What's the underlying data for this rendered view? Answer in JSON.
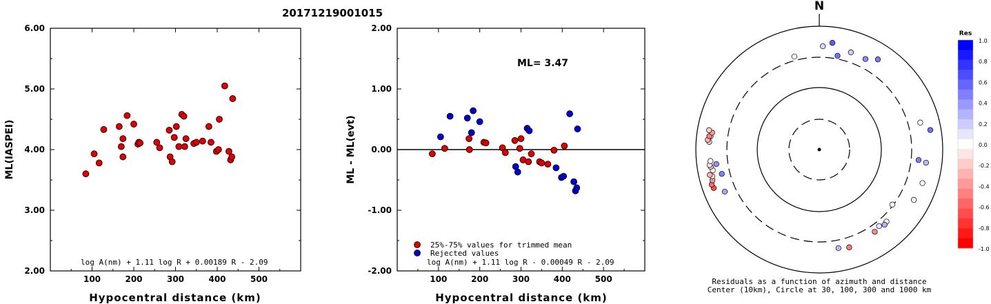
{
  "title": "20171219001015",
  "chart_data": [
    {
      "type": "scatter",
      "id": "ml-vs-distance",
      "ylabel": "ML(IASPEI)",
      "xlabel": "Hypocentral distance (km)",
      "xlim": [
        0,
        600
      ],
      "ylim": [
        2.0,
        6.0
      ],
      "xticks": [
        100,
        200,
        300,
        400,
        500
      ],
      "yticks": [
        "2.00",
        "3.00",
        "4.00",
        "5.00",
        "6.00"
      ],
      "formula": "log A(nm) + 1.11 log R + 0.00189 R - 2.09",
      "point_color": "#dd0000",
      "points": [
        [
          85,
          3.6
        ],
        [
          105,
          3.93
        ],
        [
          117,
          3.78
        ],
        [
          128,
          4.33
        ],
        [
          165,
          4.38
        ],
        [
          170,
          4.05
        ],
        [
          174,
          3.88
        ],
        [
          174,
          4.18
        ],
        [
          184,
          4.56
        ],
        [
          200,
          4.42
        ],
        [
          210,
          4.09
        ],
        [
          212,
          4.12
        ],
        [
          215,
          4.11
        ],
        [
          255,
          4.12
        ],
        [
          262,
          4.03
        ],
        [
          285,
          4.32
        ],
        [
          287,
          3.88
        ],
        [
          292,
          3.8
        ],
        [
          297,
          4.2
        ],
        [
          302,
          4.38
        ],
        [
          308,
          4.05
        ],
        [
          315,
          4.58
        ],
        [
          320,
          4.55
        ],
        [
          322,
          4.05
        ],
        [
          325,
          4.18
        ],
        [
          344,
          4.1
        ],
        [
          350,
          4.12
        ],
        [
          365,
          4.14
        ],
        [
          380,
          4.38
        ],
        [
          385,
          4.12
        ],
        [
          398,
          3.97
        ],
        [
          403,
          4.0
        ],
        [
          405,
          4.5
        ],
        [
          418,
          5.05
        ],
        [
          428,
          3.97
        ],
        [
          432,
          3.83
        ],
        [
          435,
          3.88
        ],
        [
          437,
          4.84
        ]
      ]
    },
    {
      "type": "scatter",
      "id": "residual-vs-distance",
      "ylabel": "ML - ML(evt)",
      "xlabel": "Hypocentral distance (km)",
      "xlim": [
        0,
        600
      ],
      "ylim": [
        -2.0,
        2.0
      ],
      "xticks": [
        100,
        200,
        300,
        400,
        500
      ],
      "yticks": [
        "-2.00",
        "-1.00",
        "0.00",
        "1.00",
        "2.00"
      ],
      "annotation": "ML= 3.47",
      "formula": "log A(nm) + 1.11 log R - 0.00049 R - 2.09",
      "legend": [
        {
          "label": "25%-75% values for trimmed mean",
          "color": "#dd0000"
        },
        {
          "label": "Rejected values",
          "color": "#0000cc"
        }
      ],
      "series": [
        {
          "name": "25%-75% values for trimmed mean",
          "color": "#dd0000",
          "points": [
            [
              85,
              -0.07
            ],
            [
              115,
              0.02
            ],
            [
              174,
              0.18
            ],
            [
              175,
              0.0
            ],
            [
              210,
              0.12
            ],
            [
              215,
              0.11
            ],
            [
              255,
              0.03
            ],
            [
              262,
              -0.05
            ],
            [
              285,
              0.15
            ],
            [
              297,
              0.02
            ],
            [
              300,
              0.18
            ],
            [
              305,
              -0.17
            ],
            [
              318,
              -0.2
            ],
            [
              325,
              -0.07
            ],
            [
              345,
              -0.2
            ],
            [
              350,
              -0.22
            ],
            [
              365,
              -0.24
            ],
            [
              380,
              -0.01
            ],
            [
              405,
              0.06
            ]
          ]
        },
        {
          "name": "Rejected values",
          "color": "#0000cc",
          "points": [
            [
              105,
              0.21
            ],
            [
              128,
              0.55
            ],
            [
              170,
              0.52
            ],
            [
              180,
              0.28
            ],
            [
              184,
              0.64
            ],
            [
              200,
              0.46
            ],
            [
              287,
              -0.28
            ],
            [
              292,
              -0.37
            ],
            [
              315,
              0.35
            ],
            [
              320,
              0.31
            ],
            [
              385,
              -0.3
            ],
            [
              398,
              -0.46
            ],
            [
              403,
              -0.44
            ],
            [
              418,
              0.59
            ],
            [
              428,
              -0.53
            ],
            [
              432,
              -0.68
            ],
            [
              435,
              -0.63
            ],
            [
              437,
              0.34
            ]
          ]
        }
      ]
    },
    {
      "type": "scatter",
      "id": "azimuth-residual-map",
      "north_label": "N",
      "caption_line1": "Residuals as a function of azimuth and distance",
      "caption_line2": "Center (10km), Circle at 30, 100, 300 and 1000 km",
      "colorbar_title": "Res",
      "colorbar_ticks": [
        "1.0",
        "0.8",
        "0.6",
        "0.4",
        "0.2",
        "0.0",
        "-0.2",
        "-0.4",
        "-0.6",
        "-0.8",
        "-1.0"
      ],
      "points": [
        {
          "az": 2,
          "dist": 460,
          "res": 0.15
        },
        {
          "az": 7,
          "dist": 540,
          "res": 0.64
        },
        {
          "az": 18,
          "dist": 440,
          "res": 0.2
        },
        {
          "az": 27,
          "dist": 430,
          "res": 0.46
        },
        {
          "az": 33,
          "dist": 540,
          "res": 0.52
        },
        {
          "az": -15,
          "dist": 350,
          "res": 0.0
        },
        {
          "az": 11,
          "dist": 340,
          "res": 0.55
        },
        {
          "az": 75,
          "dist": 480,
          "res": 0.0
        },
        {
          "az": 80,
          "dist": 660,
          "res": 0.55
        },
        {
          "az": 96,
          "dist": 400,
          "res": 0.5
        },
        {
          "az": 97,
          "dist": 540,
          "res": 0.28
        },
        {
          "az": 108,
          "dist": 560,
          "res": 0.0
        },
        {
          "az": 118,
          "dist": 530,
          "res": 0.0
        },
        {
          "az": 127,
          "dist": 290,
          "res": 0.0
        },
        {
          "az": 137,
          "dist": 380,
          "res": 0.0
        },
        {
          "az": 139,
          "dist": 395,
          "res": 0.3
        },
        {
          "az": 142,
          "dist": 360,
          "res": 0.1
        },
        {
          "az": 146,
          "dist": 390,
          "res": -0.47
        },
        {
          "az": 163,
          "dist": 440,
          "res": -0.52
        },
        {
          "az": 169,
          "dist": 410,
          "res": 0.28
        },
        {
          "az": 246,
          "dist": 460,
          "res": 0.35
        },
        {
          "az": 256,
          "dist": 410,
          "res": 0.5
        },
        {
          "az": 262,
          "dist": 470,
          "res": 0.42
        },
        {
          "az": 250,
          "dist": 650,
          "res": -0.7
        },
        {
          "az": 252,
          "dist": 670,
          "res": -0.6
        },
        {
          "az": 254,
          "dist": 620,
          "res": -0.4
        },
        {
          "az": 256,
          "dist": 600,
          "res": -0.1
        },
        {
          "az": 257,
          "dist": 650,
          "res": -0.3
        },
        {
          "az": 259,
          "dist": 560,
          "res": 0.0
        },
        {
          "az": 261,
          "dist": 590,
          "res": -0.2
        },
        {
          "az": 262,
          "dist": 610,
          "res": -0.1
        },
        {
          "az": 264,
          "dist": 580,
          "res": 0.0
        },
        {
          "az": 274,
          "dist": 600,
          "res": -0.2
        },
        {
          "az": 275,
          "dist": 640,
          "res": -0.3
        },
        {
          "az": 277,
          "dist": 580,
          "res": -0.1
        },
        {
          "az": 277,
          "dist": 610,
          "res": -0.5
        },
        {
          "az": 279,
          "dist": 560,
          "res": -0.4
        },
        {
          "az": 280,
          "dist": 640,
          "res": -0.2
        }
      ]
    }
  ]
}
